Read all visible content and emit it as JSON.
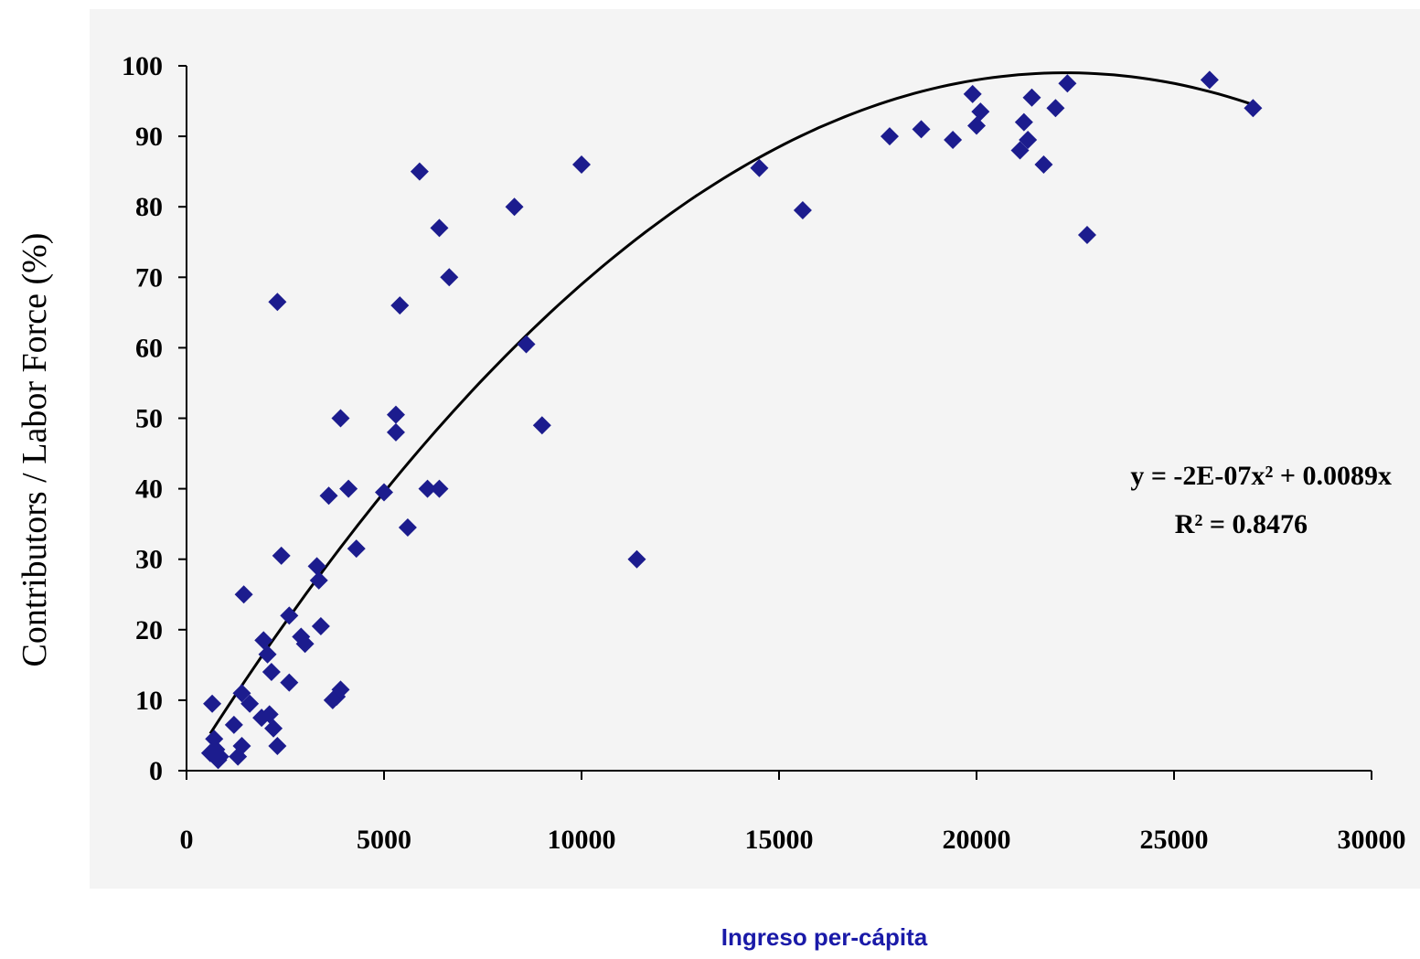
{
  "chart_data": {
    "type": "scatter",
    "xlabel": "Ingreso per-cápita",
    "ylabel": "Contributors / Labor Force (%)",
    "xlim": [
      0,
      30000
    ],
    "ylim": [
      0,
      100
    ],
    "x_ticks": [
      0,
      5000,
      10000,
      15000,
      20000,
      25000,
      30000
    ],
    "y_ticks": [
      0,
      10,
      20,
      30,
      40,
      50,
      60,
      70,
      80,
      90,
      100
    ],
    "grid": false,
    "marker_color": "#1c1c8e",
    "trendline": {
      "type": "polynomial",
      "coefficients": {
        "a": -2e-07,
        "b": 0.0089,
        "c": 0
      },
      "x_range": [
        600,
        27000
      ],
      "equation": "y = -2E-07x² + 0.0089x",
      "r_squared": "R² = 0.8476"
    },
    "points": [
      {
        "x": 600,
        "y": 2.5
      },
      {
        "x": 650,
        "y": 9.5
      },
      {
        "x": 700,
        "y": 4.5
      },
      {
        "x": 750,
        "y": 3
      },
      {
        "x": 800,
        "y": 1.5
      },
      {
        "x": 850,
        "y": 2
      },
      {
        "x": 1200,
        "y": 6.5
      },
      {
        "x": 1300,
        "y": 2
      },
      {
        "x": 1400,
        "y": 3.5
      },
      {
        "x": 1400,
        "y": 11
      },
      {
        "x": 1450,
        "y": 25
      },
      {
        "x": 1600,
        "y": 9.5
      },
      {
        "x": 1900,
        "y": 7.5
      },
      {
        "x": 1950,
        "y": 18.5
      },
      {
        "x": 2050,
        "y": 16.5
      },
      {
        "x": 2100,
        "y": 8
      },
      {
        "x": 2150,
        "y": 14
      },
      {
        "x": 2200,
        "y": 6
      },
      {
        "x": 2300,
        "y": 3.5
      },
      {
        "x": 2300,
        "y": 66.5
      },
      {
        "x": 2400,
        "y": 30.5
      },
      {
        "x": 2600,
        "y": 22
      },
      {
        "x": 2600,
        "y": 12.5
      },
      {
        "x": 2900,
        "y": 19
      },
      {
        "x": 3000,
        "y": 18
      },
      {
        "x": 3300,
        "y": 29
      },
      {
        "x": 3350,
        "y": 27
      },
      {
        "x": 3400,
        "y": 20.5
      },
      {
        "x": 3600,
        "y": 39
      },
      {
        "x": 3700,
        "y": 10
      },
      {
        "x": 3800,
        "y": 10.5
      },
      {
        "x": 3900,
        "y": 11.5
      },
      {
        "x": 3900,
        "y": 50
      },
      {
        "x": 4100,
        "y": 40
      },
      {
        "x": 4300,
        "y": 31.5
      },
      {
        "x": 5000,
        "y": 39.5
      },
      {
        "x": 5300,
        "y": 48
      },
      {
        "x": 5300,
        "y": 50.5
      },
      {
        "x": 5400,
        "y": 66
      },
      {
        "x": 5600,
        "y": 34.5
      },
      {
        "x": 5900,
        "y": 85
      },
      {
        "x": 6100,
        "y": 40
      },
      {
        "x": 6400,
        "y": 40
      },
      {
        "x": 6400,
        "y": 77
      },
      {
        "x": 6650,
        "y": 70
      },
      {
        "x": 8300,
        "y": 80
      },
      {
        "x": 8600,
        "y": 60.5
      },
      {
        "x": 9000,
        "y": 49
      },
      {
        "x": 10000,
        "y": 86
      },
      {
        "x": 11400,
        "y": 30
      },
      {
        "x": 14500,
        "y": 85.5
      },
      {
        "x": 15600,
        "y": 79.5
      },
      {
        "x": 17800,
        "y": 90
      },
      {
        "x": 18600,
        "y": 91
      },
      {
        "x": 19400,
        "y": 89.5
      },
      {
        "x": 19900,
        "y": 96
      },
      {
        "x": 20000,
        "y": 91.5
      },
      {
        "x": 20100,
        "y": 93.5
      },
      {
        "x": 21100,
        "y": 88
      },
      {
        "x": 21200,
        "y": 92
      },
      {
        "x": 21300,
        "y": 89.5
      },
      {
        "x": 21400,
        "y": 95.5
      },
      {
        "x": 21700,
        "y": 86
      },
      {
        "x": 22000,
        "y": 94
      },
      {
        "x": 22300,
        "y": 97.5
      },
      {
        "x": 22800,
        "y": 76
      },
      {
        "x": 25900,
        "y": 98
      },
      {
        "x": 27000,
        "y": 94
      }
    ]
  }
}
